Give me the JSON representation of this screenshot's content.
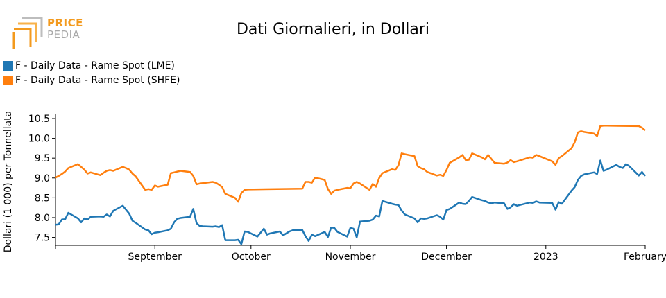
{
  "logo": {
    "line1": "PRICE",
    "line2": "PEDIA",
    "colors": {
      "accent": "#f39a1e",
      "gray": "#a9a9a9"
    }
  },
  "chart_data": {
    "type": "line",
    "title": "Dati Giornalieri, in Dollari",
    "xlabel": "",
    "ylabel": "Dollari (1 000) per Tonnellata",
    "ylim": [
      7.3,
      10.5
    ],
    "y_ticks": [
      7.5,
      8.0,
      8.5,
      9.0,
      9.5,
      10.0,
      10.5
    ],
    "y_tick_labels": [
      "7.5",
      "8.0",
      "8.5",
      "9.0",
      "9.5",
      "10.0",
      "10.5"
    ],
    "xlim": [
      "2022-08-01",
      "2023-02-01"
    ],
    "x_ticks": [
      "2022-09-01",
      "2022-10-01",
      "2022-11-01",
      "2022-12-01",
      "2023-01-01",
      "2023-02-01"
    ],
    "x_tick_labels": [
      "September",
      "October",
      "November",
      "December",
      "2023",
      "February"
    ],
    "grid": false,
    "legend_position": "top-left",
    "series": [
      {
        "name": "F - Daily Data - Rame Spot (LME)",
        "color": "#1f77b4",
        "points": [
          [
            "2022-08-01",
            7.82
          ],
          [
            "2022-08-02",
            7.83
          ],
          [
            "2022-08-03",
            7.95
          ],
          [
            "2022-08-04",
            7.96
          ],
          [
            "2022-08-05",
            8.12
          ],
          [
            "2022-08-08",
            7.98
          ],
          [
            "2022-08-09",
            7.88
          ],
          [
            "2022-08-10",
            7.98
          ],
          [
            "2022-08-11",
            7.95
          ],
          [
            "2022-08-12",
            8.02
          ],
          [
            "2022-08-15",
            8.03
          ],
          [
            "2022-08-16",
            8.02
          ],
          [
            "2022-08-17",
            8.08
          ],
          [
            "2022-08-18",
            8.03
          ],
          [
            "2022-08-19",
            8.17
          ],
          [
            "2022-08-22",
            8.3
          ],
          [
            "2022-08-23",
            8.2
          ],
          [
            "2022-08-24",
            8.1
          ],
          [
            "2022-08-25",
            7.92
          ],
          [
            "2022-08-26",
            7.87
          ],
          [
            "2022-08-29",
            7.7
          ],
          [
            "2022-08-30",
            7.68
          ],
          [
            "2022-08-31",
            7.58
          ],
          [
            "2022-09-01",
            7.62
          ],
          [
            "2022-09-02",
            7.63
          ],
          [
            "2022-09-05",
            7.68
          ],
          [
            "2022-09-06",
            7.72
          ],
          [
            "2022-09-07",
            7.88
          ],
          [
            "2022-09-08",
            7.97
          ],
          [
            "2022-09-09",
            7.99
          ],
          [
            "2022-09-12",
            8.02
          ],
          [
            "2022-09-13",
            8.22
          ],
          [
            "2022-09-14",
            7.86
          ],
          [
            "2022-09-15",
            7.79
          ],
          [
            "2022-09-16",
            7.78
          ],
          [
            "2022-09-19",
            7.77
          ],
          [
            "2022-09-20",
            7.78
          ],
          [
            "2022-09-21",
            7.76
          ],
          [
            "2022-09-22",
            7.81
          ],
          [
            "2022-09-23",
            7.43
          ],
          [
            "2022-09-26",
            7.43
          ],
          [
            "2022-09-27",
            7.44
          ],
          [
            "2022-09-28",
            7.33
          ],
          [
            "2022-09-29",
            7.65
          ],
          [
            "2022-09-30",
            7.64
          ],
          [
            "2022-10-03",
            7.52
          ],
          [
            "2022-10-04",
            7.62
          ],
          [
            "2022-10-05",
            7.72
          ],
          [
            "2022-10-06",
            7.57
          ],
          [
            "2022-10-07",
            7.6
          ],
          [
            "2022-10-10",
            7.65
          ],
          [
            "2022-10-11",
            7.55
          ],
          [
            "2022-10-12",
            7.6
          ],
          [
            "2022-10-13",
            7.65
          ],
          [
            "2022-10-14",
            7.68
          ],
          [
            "2022-10-17",
            7.69
          ],
          [
            "2022-10-18",
            7.53
          ],
          [
            "2022-10-19",
            7.41
          ],
          [
            "2022-10-20",
            7.57
          ],
          [
            "2022-10-21",
            7.53
          ],
          [
            "2022-10-24",
            7.64
          ],
          [
            "2022-10-25",
            7.51
          ],
          [
            "2022-10-26",
            7.75
          ],
          [
            "2022-10-27",
            7.74
          ],
          [
            "2022-10-28",
            7.64
          ],
          [
            "2022-10-31",
            7.52
          ],
          [
            "2022-11-01",
            7.74
          ],
          [
            "2022-11-02",
            7.72
          ],
          [
            "2022-11-03",
            7.5
          ],
          [
            "2022-11-04",
            7.9
          ],
          [
            "2022-11-07",
            7.92
          ],
          [
            "2022-11-08",
            7.95
          ],
          [
            "2022-11-09",
            8.05
          ],
          [
            "2022-11-10",
            8.03
          ],
          [
            "2022-11-11",
            8.42
          ],
          [
            "2022-11-14",
            8.35
          ],
          [
            "2022-11-15",
            8.33
          ],
          [
            "2022-11-16",
            8.32
          ],
          [
            "2022-11-17",
            8.18
          ],
          [
            "2022-11-18",
            8.08
          ],
          [
            "2022-11-21",
            7.98
          ],
          [
            "2022-11-22",
            7.88
          ],
          [
            "2022-11-23",
            7.98
          ],
          [
            "2022-11-24",
            7.97
          ],
          [
            "2022-11-25",
            7.98
          ],
          [
            "2022-11-28",
            8.06
          ],
          [
            "2022-11-29",
            8.02
          ],
          [
            "2022-11-30",
            7.95
          ],
          [
            "2022-12-01",
            8.19
          ],
          [
            "2022-12-02",
            8.22
          ],
          [
            "2022-12-05",
            8.38
          ],
          [
            "2022-12-06",
            8.35
          ],
          [
            "2022-12-07",
            8.34
          ],
          [
            "2022-12-08",
            8.42
          ],
          [
            "2022-12-09",
            8.52
          ],
          [
            "2022-12-12",
            8.44
          ],
          [
            "2022-12-13",
            8.42
          ],
          [
            "2022-12-14",
            8.38
          ],
          [
            "2022-12-15",
            8.36
          ],
          [
            "2022-12-16",
            8.38
          ],
          [
            "2022-12-19",
            8.36
          ],
          [
            "2022-12-20",
            8.22
          ],
          [
            "2022-12-21",
            8.26
          ],
          [
            "2022-12-22",
            8.34
          ],
          [
            "2022-12-23",
            8.3
          ],
          [
            "2022-12-27",
            8.38
          ],
          [
            "2022-12-28",
            8.37
          ],
          [
            "2022-12-29",
            8.41
          ],
          [
            "2022-12-30",
            8.38
          ],
          [
            "2023-01-03",
            8.37
          ],
          [
            "2023-01-04",
            8.2
          ],
          [
            "2023-01-05",
            8.39
          ],
          [
            "2023-01-06",
            8.35
          ],
          [
            "2023-01-09",
            8.68
          ],
          [
            "2023-01-10",
            8.77
          ],
          [
            "2023-01-11",
            8.95
          ],
          [
            "2023-01-12",
            9.05
          ],
          [
            "2023-01-13",
            9.09
          ],
          [
            "2023-01-16",
            9.14
          ],
          [
            "2023-01-17",
            9.1
          ],
          [
            "2023-01-18",
            9.44
          ],
          [
            "2023-01-19",
            9.18
          ],
          [
            "2023-01-20",
            9.21
          ],
          [
            "2023-01-23",
            9.33
          ],
          [
            "2023-01-24",
            9.28
          ],
          [
            "2023-01-25",
            9.25
          ],
          [
            "2023-01-26",
            9.35
          ],
          [
            "2023-01-27",
            9.3
          ],
          [
            "2023-01-30",
            9.06
          ],
          [
            "2023-01-31",
            9.15
          ],
          [
            "2023-02-01",
            9.05
          ]
        ]
      },
      {
        "name": "F - Daily Data - Rame Spot (SHFE)",
        "color": "#ff7f0e",
        "points": [
          [
            "2022-08-01",
            9.01
          ],
          [
            "2022-08-02",
            9.05
          ],
          [
            "2022-08-03",
            9.1
          ],
          [
            "2022-08-04",
            9.16
          ],
          [
            "2022-08-05",
            9.25
          ],
          [
            "2022-08-08",
            9.35
          ],
          [
            "2022-08-09",
            9.28
          ],
          [
            "2022-08-10",
            9.21
          ],
          [
            "2022-08-11",
            9.11
          ],
          [
            "2022-08-12",
            9.14
          ],
          [
            "2022-08-15",
            9.07
          ],
          [
            "2022-08-16",
            9.13
          ],
          [
            "2022-08-17",
            9.18
          ],
          [
            "2022-08-18",
            9.2
          ],
          [
            "2022-08-19",
            9.18
          ],
          [
            "2022-08-22",
            9.28
          ],
          [
            "2022-08-23",
            9.25
          ],
          [
            "2022-08-24",
            9.21
          ],
          [
            "2022-08-25",
            9.11
          ],
          [
            "2022-08-26",
            9.04
          ],
          [
            "2022-08-29",
            8.7
          ],
          [
            "2022-08-30",
            8.72
          ],
          [
            "2022-08-31",
            8.7
          ],
          [
            "2022-09-01",
            8.81
          ],
          [
            "2022-09-02",
            8.78
          ],
          [
            "2022-09-05",
            8.83
          ],
          [
            "2022-09-06",
            9.12
          ],
          [
            "2022-09-07",
            9.14
          ],
          [
            "2022-09-08",
            9.16
          ],
          [
            "2022-09-09",
            9.18
          ],
          [
            "2022-09-12",
            9.15
          ],
          [
            "2022-09-13",
            9.05
          ],
          [
            "2022-09-14",
            8.84
          ],
          [
            "2022-09-15",
            8.86
          ],
          [
            "2022-09-16",
            8.87
          ],
          [
            "2022-09-19",
            8.9
          ],
          [
            "2022-09-20",
            8.88
          ],
          [
            "2022-09-21",
            8.83
          ],
          [
            "2022-09-22",
            8.77
          ],
          [
            "2022-09-23",
            8.6
          ],
          [
            "2022-09-26",
            8.5
          ],
          [
            "2022-09-27",
            8.4
          ],
          [
            "2022-09-28",
            8.62
          ],
          [
            "2022-09-29",
            8.7
          ],
          [
            "2022-09-30",
            8.71
          ],
          [
            "2022-10-17",
            8.73
          ],
          [
            "2022-10-18",
            8.9
          ],
          [
            "2022-10-19",
            8.9
          ],
          [
            "2022-10-20",
            8.88
          ],
          [
            "2022-10-21",
            9.01
          ],
          [
            "2022-10-24",
            8.95
          ],
          [
            "2022-10-25",
            8.72
          ],
          [
            "2022-10-26",
            8.6
          ],
          [
            "2022-10-27",
            8.68
          ],
          [
            "2022-10-28",
            8.7
          ],
          [
            "2022-10-31",
            8.75
          ],
          [
            "2022-11-01",
            8.74
          ],
          [
            "2022-11-02",
            8.86
          ],
          [
            "2022-11-03",
            8.9
          ],
          [
            "2022-11-04",
            8.86
          ],
          [
            "2022-11-07",
            8.7
          ],
          [
            "2022-11-08",
            8.85
          ],
          [
            "2022-11-09",
            8.78
          ],
          [
            "2022-11-10",
            9.0
          ],
          [
            "2022-11-11",
            9.12
          ],
          [
            "2022-11-14",
            9.22
          ],
          [
            "2022-11-15",
            9.2
          ],
          [
            "2022-11-16",
            9.32
          ],
          [
            "2022-11-17",
            9.62
          ],
          [
            "2022-11-18",
            9.6
          ],
          [
            "2022-11-21",
            9.55
          ],
          [
            "2022-11-22",
            9.3
          ],
          [
            "2022-11-23",
            9.25
          ],
          [
            "2022-11-24",
            9.22
          ],
          [
            "2022-11-25",
            9.15
          ],
          [
            "2022-11-28",
            9.06
          ],
          [
            "2022-11-29",
            9.08
          ],
          [
            "2022-11-30",
            9.05
          ],
          [
            "2022-12-01",
            9.2
          ],
          [
            "2022-12-02",
            9.38
          ],
          [
            "2022-12-05",
            9.52
          ],
          [
            "2022-12-06",
            9.58
          ],
          [
            "2022-12-07",
            9.45
          ],
          [
            "2022-12-08",
            9.46
          ],
          [
            "2022-12-09",
            9.62
          ],
          [
            "2022-12-12",
            9.52
          ],
          [
            "2022-12-13",
            9.47
          ],
          [
            "2022-12-14",
            9.58
          ],
          [
            "2022-12-15",
            9.48
          ],
          [
            "2022-12-16",
            9.38
          ],
          [
            "2022-12-19",
            9.36
          ],
          [
            "2022-12-20",
            9.39
          ],
          [
            "2022-12-21",
            9.45
          ],
          [
            "2022-12-22",
            9.4
          ],
          [
            "2022-12-23",
            9.42
          ],
          [
            "2022-12-27",
            9.52
          ],
          [
            "2022-12-28",
            9.51
          ],
          [
            "2022-12-29",
            9.58
          ],
          [
            "2022-12-30",
            9.55
          ],
          [
            "2023-01-03",
            9.42
          ],
          [
            "2023-01-04",
            9.33
          ],
          [
            "2023-01-05",
            9.5
          ],
          [
            "2023-01-06",
            9.55
          ],
          [
            "2023-01-09",
            9.75
          ],
          [
            "2023-01-10",
            9.9
          ],
          [
            "2023-01-11",
            10.15
          ],
          [
            "2023-01-12",
            10.18
          ],
          [
            "2023-01-13",
            10.16
          ],
          [
            "2023-01-16",
            10.12
          ],
          [
            "2023-01-17",
            10.06
          ],
          [
            "2023-01-18",
            10.31
          ],
          [
            "2023-01-19",
            10.32
          ],
          [
            "2023-01-20",
            10.32
          ],
          [
            "2023-01-30",
            10.31
          ],
          [
            "2023-01-31",
            10.27
          ],
          [
            "2023-02-01",
            10.2
          ]
        ]
      }
    ]
  }
}
